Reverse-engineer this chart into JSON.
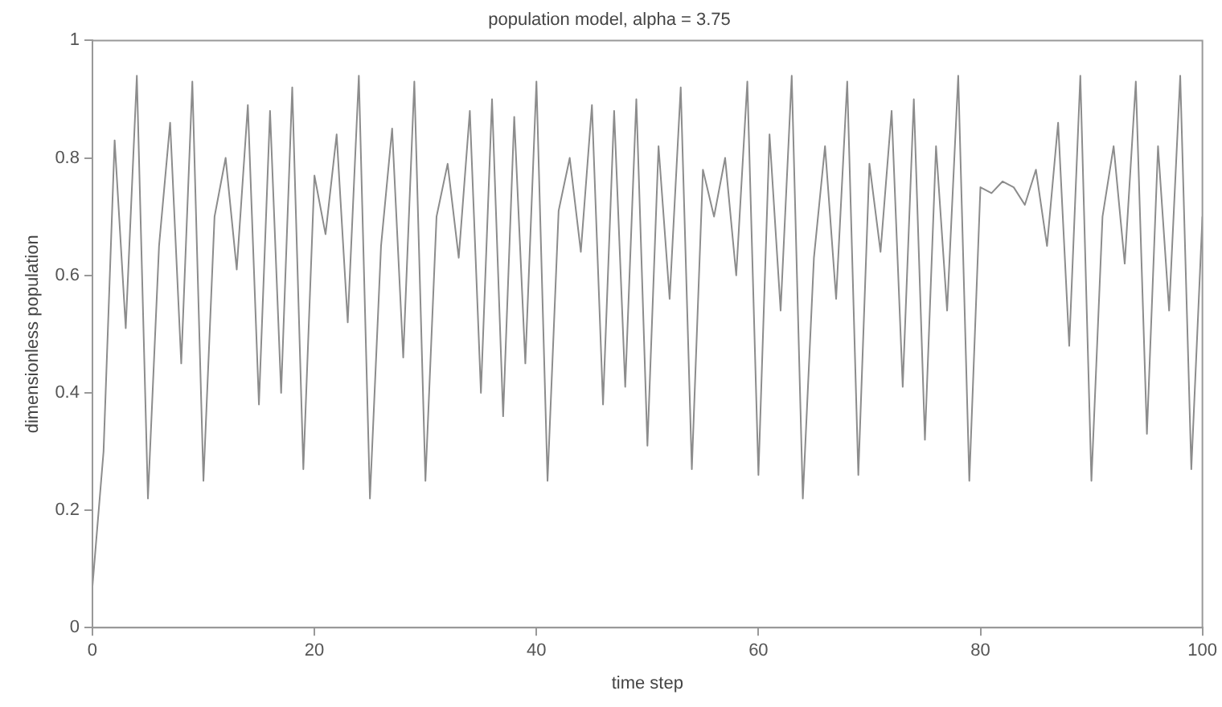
{
  "chart_data": {
    "type": "line",
    "title": "population model, alpha = 3.75",
    "xlabel": "time step",
    "ylabel": "dimensionless population",
    "x": [
      0,
      1,
      2,
      3,
      4,
      5,
      6,
      7,
      8,
      9,
      10,
      11,
      12,
      13,
      14,
      15,
      16,
      17,
      18,
      19,
      20,
      21,
      22,
      23,
      24,
      25,
      26,
      27,
      28,
      29,
      30,
      31,
      32,
      33,
      34,
      35,
      36,
      37,
      38,
      39,
      40,
      41,
      42,
      43,
      44,
      45,
      46,
      47,
      48,
      49,
      50,
      51,
      52,
      53,
      54,
      55,
      56,
      57,
      58,
      59,
      60,
      61,
      62,
      63,
      64,
      65,
      66,
      67,
      68,
      69,
      70,
      71,
      72,
      73,
      74,
      75,
      76,
      77,
      78,
      79,
      80,
      81,
      82,
      83,
      84,
      85,
      86,
      87,
      88,
      89,
      90,
      91,
      92,
      93,
      94,
      95,
      96,
      97,
      98,
      99,
      100
    ],
    "series": [
      {
        "color": "#8c8c8c",
        "values": [
          0.07,
          0.3,
          0.83,
          0.51,
          0.94,
          0.22,
          0.65,
          0.86,
          0.45,
          0.93,
          0.25,
          0.7,
          0.8,
          0.61,
          0.89,
          0.38,
          0.88,
          0.4,
          0.92,
          0.27,
          0.77,
          0.67,
          0.84,
          0.52,
          0.94,
          0.22,
          0.65,
          0.85,
          0.46,
          0.93,
          0.25,
          0.7,
          0.79,
          0.63,
          0.88,
          0.4,
          0.9,
          0.36,
          0.87,
          0.45,
          0.93,
          0.25,
          0.71,
          0.8,
          0.64,
          0.89,
          0.38,
          0.88,
          0.41,
          0.9,
          0.31,
          0.82,
          0.56,
          0.92,
          0.27,
          0.78,
          0.7,
          0.8,
          0.6,
          0.93,
          0.26,
          0.84,
          0.54,
          0.94,
          0.22,
          0.63,
          0.82,
          0.56,
          0.93,
          0.26,
          0.79,
          0.64,
          0.88,
          0.41,
          0.9,
          0.32,
          0.82,
          0.54,
          0.94,
          0.25,
          0.75,
          0.74,
          0.76,
          0.75,
          0.72,
          0.78,
          0.65,
          0.86,
          0.48,
          0.94,
          0.25,
          0.7,
          0.82,
          0.62,
          0.93,
          0.33,
          0.82,
          0.54,
          0.94,
          0.27,
          0.7
        ]
      }
    ],
    "xlim": [
      0,
      100
    ],
    "xticks": [
      0,
      20,
      40,
      60,
      80,
      100
    ],
    "ylim": [
      0,
      1
    ],
    "yticks": [
      0,
      0.2,
      0.4,
      0.6,
      0.8,
      1
    ],
    "grid": false,
    "legend": false,
    "marker": "none",
    "line_style": "solid"
  }
}
